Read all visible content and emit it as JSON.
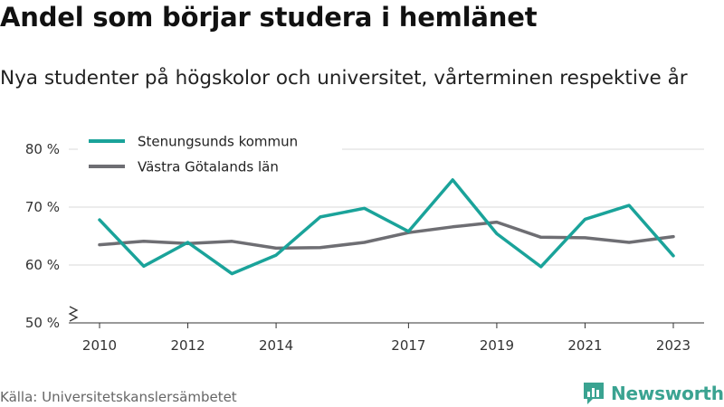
{
  "header": {
    "title": "Andel som börjar studera i hemlänet",
    "subtitle": "Nya studenter på högskolor och universitet, vårterminen respektive år"
  },
  "footer": {
    "source": "Källa: Universitetskanslersämbetet",
    "brand": "Newsworthy",
    "brand_icon": "newsworthy-logo-icon"
  },
  "chart_data": {
    "type": "line",
    "title": "Andel som börjar studera i hemlänet",
    "subtitle": "Nya studenter på högskolor och universitet, vårterminen respektive år",
    "xlabel": "",
    "ylabel": "",
    "x": [
      2010,
      2011,
      2012,
      2013,
      2014,
      2015,
      2016,
      2017,
      2018,
      2019,
      2020,
      2021,
      2022,
      2023
    ],
    "x_ticks": [
      2010,
      2012,
      2014,
      2017,
      2019,
      2021,
      2023
    ],
    "y_ticks": [
      50,
      60,
      70,
      80
    ],
    "y_tick_labels": [
      "50 %",
      "60 %",
      "70 %",
      "80 %"
    ],
    "ylim": [
      50,
      80
    ],
    "y_axis_break": true,
    "grid": "horizontal",
    "legend_position": "top-left",
    "series": [
      {
        "name": "Stenungsunds kommun",
        "color": "#1aa39a",
        "values": [
          67.8,
          59.8,
          63.9,
          58.5,
          61.7,
          68.3,
          69.8,
          65.8,
          74.7,
          65.4,
          59.7,
          67.9,
          70.3,
          61.6
        ]
      },
      {
        "name": "Västra Götalands län",
        "color": "#6e6e73",
        "values": [
          63.5,
          64.1,
          63.7,
          64.1,
          62.9,
          63.0,
          63.9,
          65.6,
          66.6,
          67.4,
          64.8,
          64.7,
          63.9,
          64.9
        ]
      }
    ]
  }
}
